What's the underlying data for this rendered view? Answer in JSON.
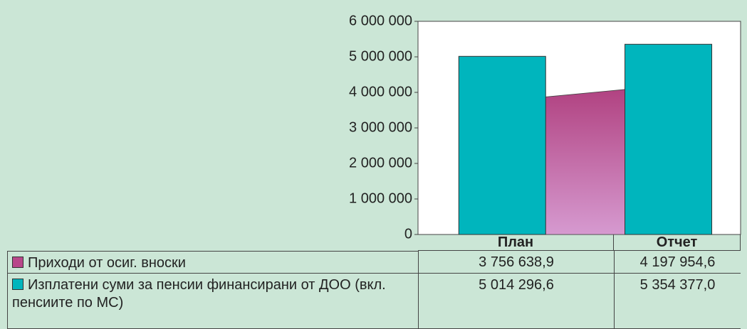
{
  "chart_data": {
    "type": "bar",
    "categories": [
      "План",
      "Отчет"
    ],
    "series": [
      {
        "name": "Приходи от осиг. вноски",
        "type": "area",
        "color": "#b8478a",
        "values": [
          3756638.9,
          4197954.6
        ],
        "value_labels": [
          "3 756 638,9",
          "4 197 954,6"
        ]
      },
      {
        "name": "Изплатени суми за пенсии финансирани от ДОО (вкл. пенсиите по МС)",
        "type": "bar",
        "color": "#00b5bd",
        "values": [
          5014296.6,
          5354377.0
        ],
        "value_labels": [
          "5 014 296,6",
          "5 354 377,0"
        ]
      }
    ],
    "ylim": [
      0,
      6000000
    ],
    "yticks": [
      0,
      {
        "value": 1000000,
        "label": "1 000 000"
      },
      {
        "value": 2000000,
        "label": "2 000 000"
      },
      {
        "value": 3000000,
        "label": "3 000 000"
      },
      {
        "value": 4000000,
        "label": "4 000 000"
      },
      {
        "value": 5000000,
        "label": "5 000 000"
      },
      {
        "value": 6000000,
        "label": "6 000 000"
      }
    ]
  }
}
